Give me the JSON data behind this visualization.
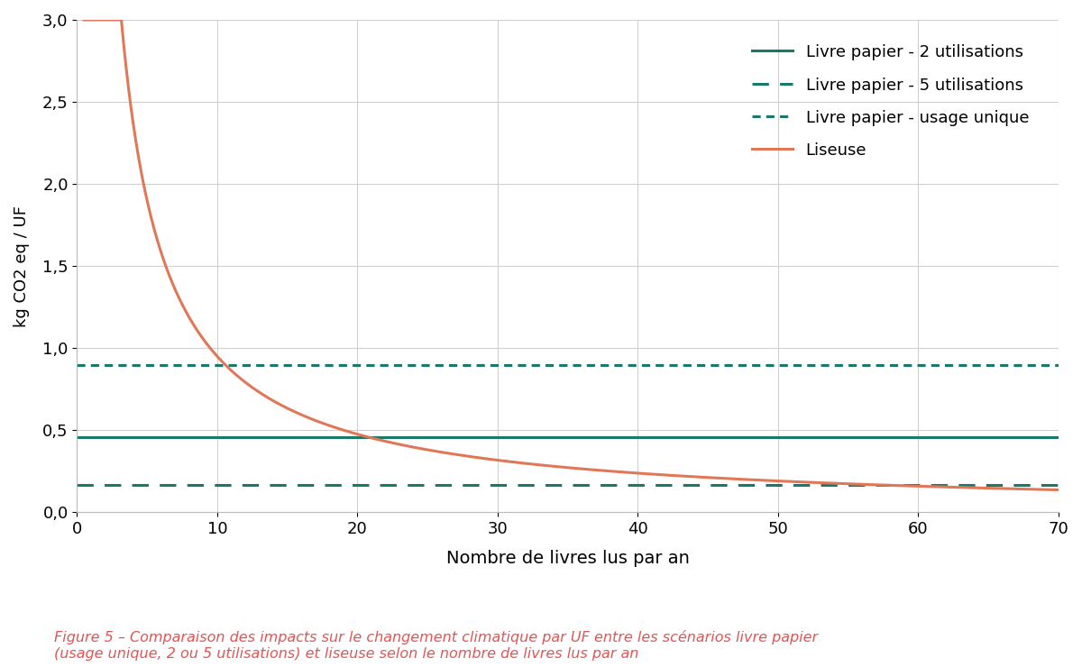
{
  "xlabel": "Nombre de livres lus par an",
  "ylabel": "kg CO2 eq / UF",
  "xlim": [
    0,
    70
  ],
  "ylim": [
    0,
    3.0
  ],
  "xticks": [
    0,
    10,
    20,
    30,
    40,
    50,
    60,
    70
  ],
  "yticks": [
    0.0,
    0.5,
    1.0,
    1.5,
    2.0,
    2.5,
    3.0
  ],
  "ytick_labels": [
    "0,0",
    "0,5",
    "1,0",
    "1,5",
    "2,0",
    "2,5",
    "3,0"
  ],
  "xtick_labels": [
    "0",
    "10",
    "20",
    "30",
    "40",
    "50",
    "60",
    "70"
  ],
  "livre_papier_2util_value": 0.455,
  "livre_papier_5util_value": 0.165,
  "livre_papier_usage_unique_value": 0.895,
  "liseuse_total_impact": 9.5,
  "color_teal": "#1a7a6a",
  "color_orange": "#e07858",
  "background_color": "#ffffff",
  "grid_color": "#d0d0d0",
  "legend_labels": [
    "Livre papier - 2 utilisations",
    "Livre papier - 5 utilisations",
    "Livre papier - usage unique",
    "Liseuse"
  ],
  "caption": "Figure 5 – Comparaison des impacts sur le changement climatique par UF entre les scénarios livre papier\n(usage unique, 2 ou 5 utilisations) et liseuse selon le nombre de livres lus par an",
  "caption_color": "#e05555"
}
